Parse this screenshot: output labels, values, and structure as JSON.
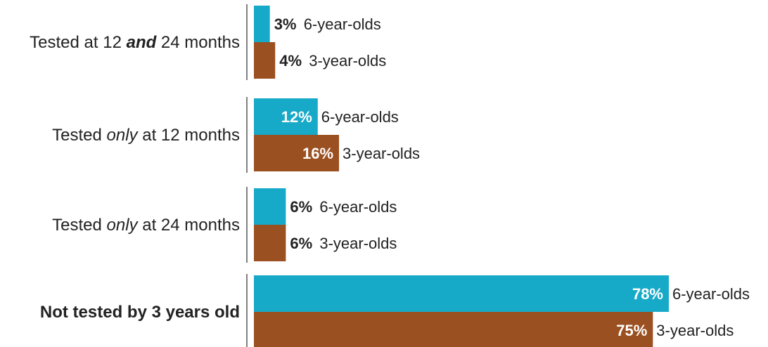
{
  "chart_data": {
    "type": "bar",
    "orientation": "horizontal",
    "categories": [
      {
        "parts": [
          {
            "text": "Tested at 12 ",
            "style": "normal"
          },
          {
            "text": "and",
            "style": "bold-italic"
          },
          {
            "text": " 24 months",
            "style": "normal"
          }
        ]
      },
      {
        "parts": [
          {
            "text": "Tested ",
            "style": "normal"
          },
          {
            "text": "only",
            "style": "italic"
          },
          {
            "text": " at 12 months",
            "style": "normal"
          }
        ]
      },
      {
        "parts": [
          {
            "text": "Tested ",
            "style": "normal"
          },
          {
            "text": "only",
            "style": "italic"
          },
          {
            "text": " at 24 months",
            "style": "normal"
          }
        ]
      },
      {
        "parts": [
          {
            "text": "Not tested by 3 years old",
            "style": "bold"
          }
        ]
      }
    ],
    "series": [
      {
        "name": "6-year-olds",
        "color": "#17a9c8",
        "values": [
          3,
          12,
          6,
          78
        ],
        "value_labels": [
          "3%",
          "12%",
          "6%",
          "78%"
        ]
      },
      {
        "name": "3-year-olds",
        "color": "#9a5020",
        "values": [
          4,
          16,
          6,
          75
        ],
        "value_labels": [
          "4%",
          "16%",
          "6%",
          "75%"
        ]
      }
    ],
    "xlim": [
      0,
      78
    ],
    "grid": false,
    "legend": "none"
  }
}
